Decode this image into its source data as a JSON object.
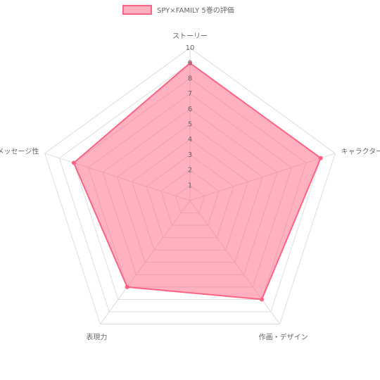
{
  "chart_data": {
    "type": "radar",
    "categories": [
      "ストーリー",
      "キャラクター",
      "作画・デザイン",
      "表現力",
      "メッセージ性"
    ],
    "series": [
      {
        "name": "SPY×FAMILY 5巻の評価",
        "color": "#ff6384",
        "values": [
          9,
          9,
          8,
          7,
          8
        ]
      }
    ],
    "ylim": [
      0,
      10
    ],
    "yticks": [
      1,
      2,
      3,
      4,
      5,
      6,
      7,
      8,
      9,
      10
    ],
    "grid": true,
    "legend": "top"
  }
}
